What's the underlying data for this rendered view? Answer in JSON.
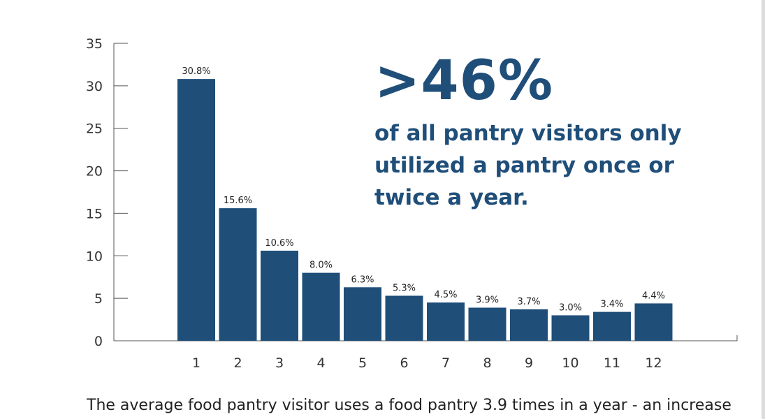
{
  "chart_data": {
    "type": "bar",
    "categories": [
      "1",
      "2",
      "3",
      "4",
      "5",
      "6",
      "7",
      "8",
      "9",
      "10",
      "11",
      "12"
    ],
    "values": [
      30.8,
      15.6,
      10.6,
      8.0,
      6.3,
      5.3,
      4.5,
      3.9,
      3.7,
      3.0,
      3.4,
      4.4
    ],
    "data_labels": [
      "30.8%",
      "15.6%",
      "10.6%",
      "8.0%",
      "6.3%",
      "5.3%",
      "4.5%",
      "3.9%",
      "3.7%",
      "3.0%",
      "3.4%",
      "4.4%"
    ],
    "y_ticks": [
      "0",
      "5",
      "10",
      "15",
      "20",
      "25",
      "30",
      "35"
    ],
    "ylim": [
      0,
      35
    ],
    "grid": false,
    "bar_color": "#1f4e79"
  },
  "callout": {
    "headline": ">46%",
    "text": "of all pantry visitors only utilized a pantry once or twice a year."
  },
  "caption": "The average food pantry visitor uses a food pantry 3.9 times in a year - an increase"
}
